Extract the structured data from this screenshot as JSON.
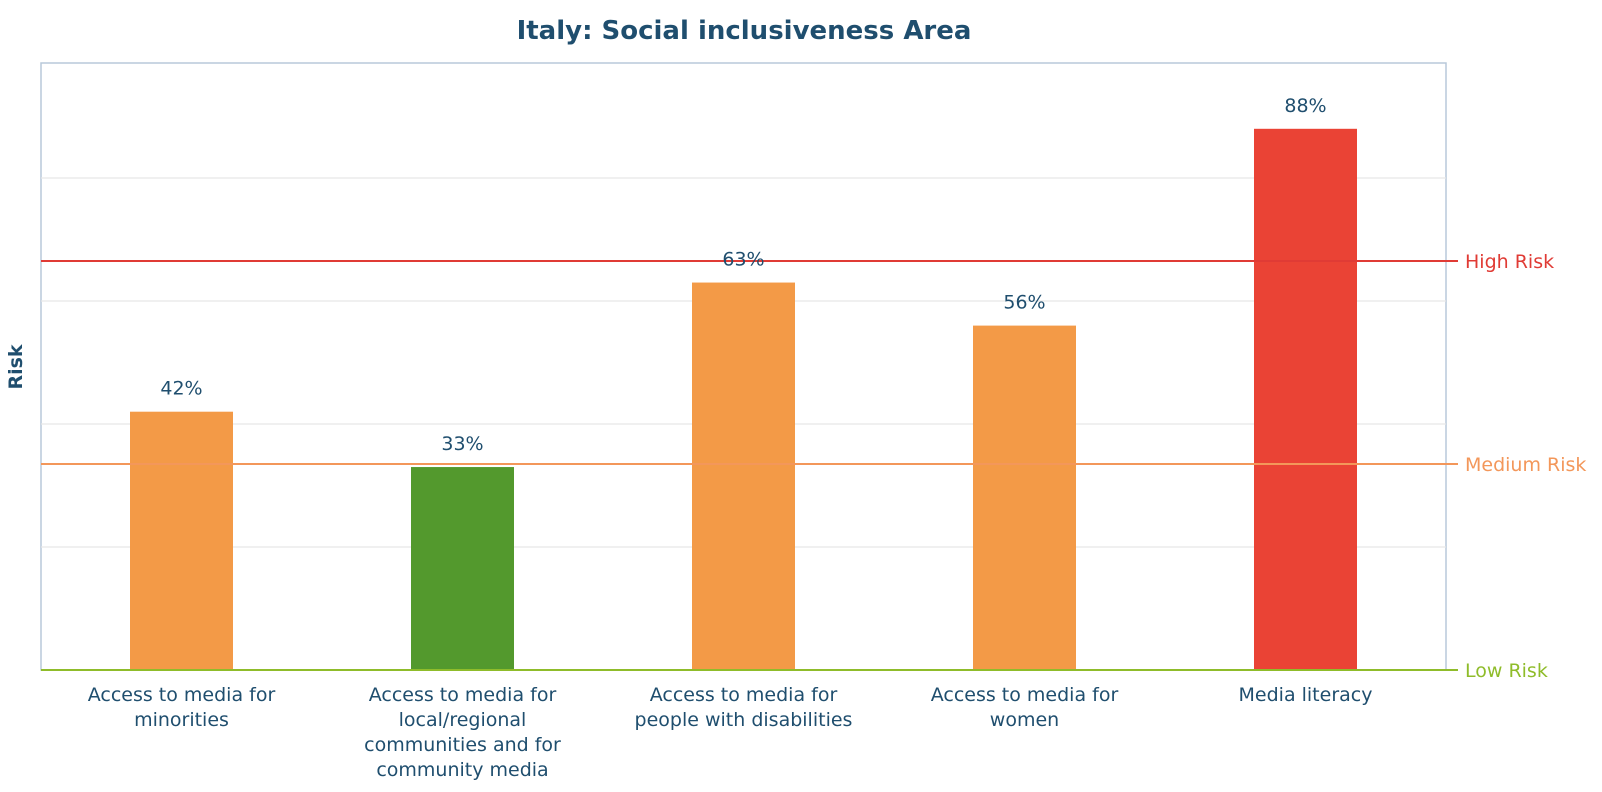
{
  "chart_data": {
    "type": "bar",
    "title": "Italy: Social inclusiveness Area",
    "ylabel": "Risk",
    "xlabel": "",
    "ylim": [
      0,
      100
    ],
    "grid": "horizontal",
    "categories": [
      [
        "Access to media for",
        "minorities"
      ],
      [
        "Access to media for",
        "local/regional",
        "communities and for",
        "community media"
      ],
      [
        "Access to media for",
        "people with disabilities"
      ],
      [
        "Access to media for",
        "women"
      ],
      [
        "Media literacy"
      ]
    ],
    "values": [
      42,
      33,
      63,
      56,
      88
    ],
    "value_labels": [
      "42%",
      "33%",
      "63%",
      "56%",
      "88%"
    ],
    "bar_colors": [
      "#f39a47",
      "#53992d",
      "#f39a47",
      "#f39a47",
      "#ea4335"
    ],
    "grid_values": [
      20,
      40,
      60,
      80
    ],
    "thresholds": [
      {
        "label": "High Risk",
        "value": 66.5,
        "color": "#e03b35"
      },
      {
        "label": "Medium Risk",
        "value": 33.5,
        "color": "#f3975a"
      },
      {
        "label": "Low Risk",
        "value": 0,
        "color": "#8fbc2a"
      }
    ]
  }
}
